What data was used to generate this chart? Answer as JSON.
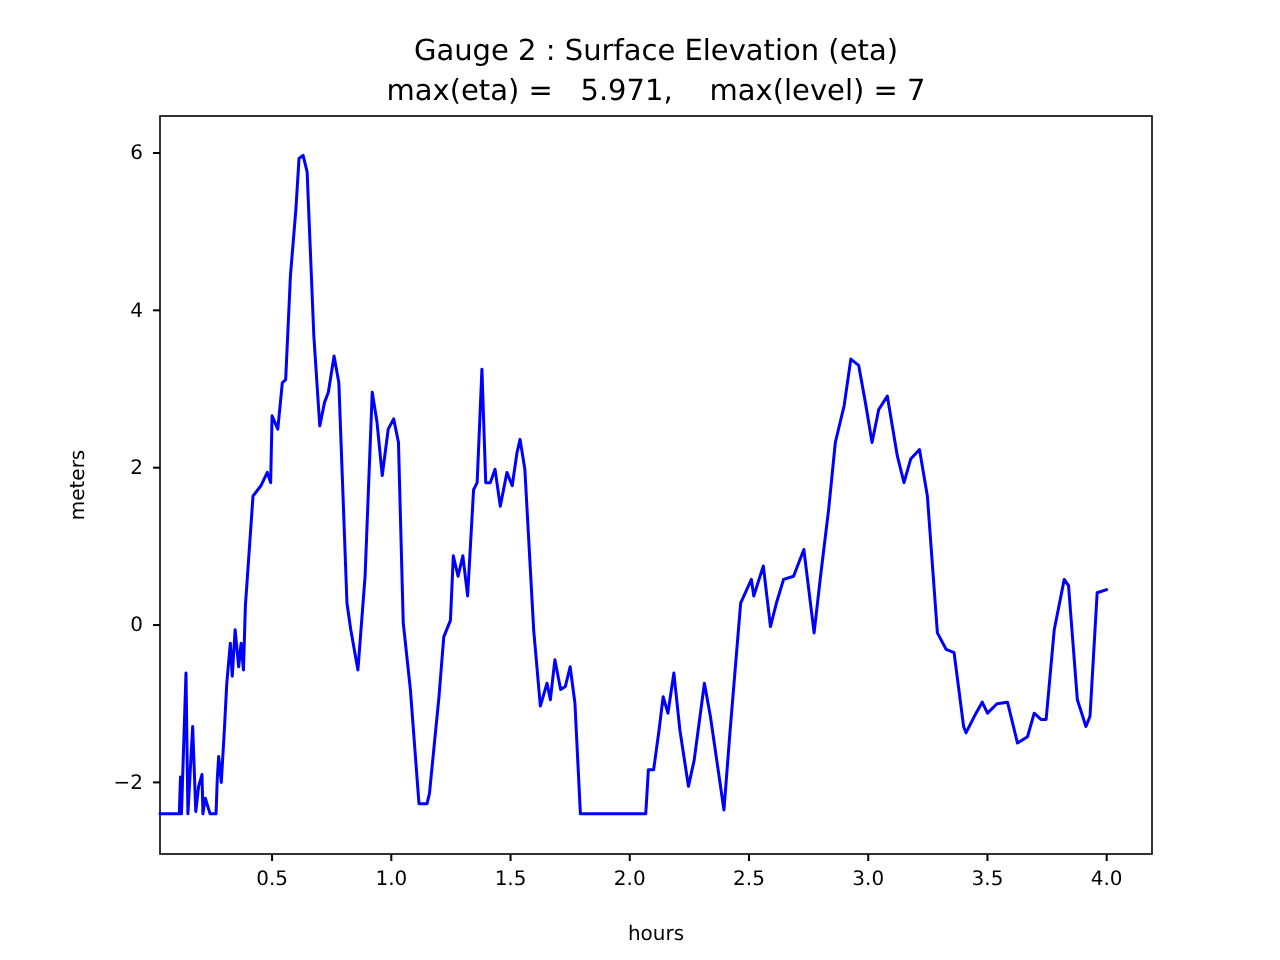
{
  "chart_data": {
    "type": "line",
    "title": "Gauge 2 : Surface Elevation (eta)",
    "subtitle": "max(eta) =   5.971,    max(level) = 7",
    "xlabel": "hours",
    "ylabel": "meters",
    "xlim": [
      0.03,
      4.19
    ],
    "ylim": [
      -2.91,
      6.47
    ],
    "xticks": [
      0.5,
      {
        "value": 1,
        "label": "1.0"
      },
      1.5,
      {
        "value": 2,
        "label": "2.0"
      },
      2.5,
      {
        "value": 3,
        "label": "3.0"
      },
      3.5,
      {
        "value": 4,
        "label": "4.0"
      }
    ],
    "yticks": [
      {
        "value": -2,
        "label": "−2"
      },
      0,
      2,
      4,
      6
    ],
    "line_style": "solid",
    "series": [
      {
        "color": "#0000ff",
        "x": [
          0.03,
          0.111,
          0.116,
          0.12,
          0.139,
          0.147,
          0.167,
          0.18,
          0.192,
          0.206,
          0.21,
          0.22,
          0.24,
          0.265,
          0.27,
          0.276,
          0.287,
          0.3,
          0.31,
          0.325,
          0.333,
          0.345,
          0.36,
          0.37,
          0.38,
          0.388,
          0.42,
          0.453,
          0.48,
          0.494,
          0.5,
          0.524,
          0.543,
          0.557,
          0.577,
          0.6,
          0.613,
          0.63,
          0.647,
          0.675,
          0.7,
          0.72,
          0.736,
          0.76,
          0.78,
          0.814,
          0.83,
          0.86,
          0.89,
          0.92,
          0.94,
          0.962,
          0.987,
          1.01,
          1.03,
          1.05,
          1.08,
          1.116,
          1.15,
          1.16,
          1.2,
          1.22,
          1.248,
          1.26,
          1.28,
          1.3,
          1.32,
          1.345,
          1.36,
          1.38,
          1.396,
          1.415,
          1.435,
          1.457,
          1.485,
          1.507,
          1.527,
          1.54,
          1.56,
          1.597,
          1.625,
          1.653,
          1.667,
          1.686,
          1.71,
          1.73,
          1.75,
          1.77,
          1.793,
          2.067,
          2.078,
          2.1,
          2.123,
          2.14,
          2.16,
          2.185,
          2.21,
          2.246,
          2.27,
          2.313,
          2.338,
          2.395,
          2.42,
          2.465,
          2.51,
          2.52,
          2.56,
          2.59,
          2.615,
          2.645,
          2.687,
          2.73,
          2.773,
          2.8,
          2.834,
          2.862,
          2.899,
          2.927,
          2.96,
          2.988,
          3.016,
          3.044,
          3.08,
          3.122,
          3.15,
          3.178,
          3.215,
          3.248,
          3.29,
          3.327,
          3.36,
          3.4,
          3.41,
          3.445,
          3.478,
          3.5,
          3.54,
          3.584,
          3.626,
          3.668,
          3.696,
          3.724,
          3.746,
          3.78,
          3.822,
          3.84,
          3.877,
          3.913,
          3.93,
          3.96,
          4.0
        ],
        "values": [
          -2.4,
          -2.4,
          -1.93,
          -2.4,
          -0.61,
          -2.4,
          -1.29,
          -2.37,
          -2.05,
          -1.9,
          -2.4,
          -2.2,
          -2.4,
          -2.4,
          -1.97,
          -1.67,
          -2.0,
          -1.33,
          -0.74,
          -0.23,
          -0.65,
          -0.06,
          -0.53,
          -0.23,
          -0.57,
          0.24,
          1.64,
          1.77,
          1.94,
          1.81,
          2.66,
          2.49,
          3.08,
          3.12,
          4.44,
          5.29,
          5.93,
          5.97,
          5.76,
          3.68,
          2.53,
          2.83,
          2.96,
          3.42,
          3.08,
          0.28,
          -0.06,
          -0.57,
          0.62,
          2.96,
          2.58,
          1.9,
          2.49,
          2.62,
          2.32,
          0.03,
          -0.82,
          -2.27,
          -2.27,
          -2.14,
          -0.91,
          -0.15,
          0.06,
          0.88,
          0.62,
          0.88,
          0.37,
          1.72,
          1.81,
          3.25,
          1.81,
          1.81,
          1.98,
          1.51,
          1.94,
          1.77,
          2.19,
          2.36,
          1.98,
          -0.06,
          -1.03,
          -0.74,
          -0.95,
          -0.44,
          -0.82,
          -0.78,
          -0.53,
          -0.99,
          -2.4,
          -2.4,
          -1.84,
          -1.84,
          -1.33,
          -0.91,
          -1.12,
          -0.61,
          -1.33,
          -2.05,
          -1.72,
          -0.74,
          -1.16,
          -2.35,
          -1.37,
          0.28,
          0.58,
          0.37,
          0.75,
          -0.02,
          0.28,
          0.58,
          0.62,
          0.96,
          -0.1,
          0.62,
          1.47,
          2.32,
          2.79,
          3.38,
          3.3,
          2.83,
          2.32,
          2.74,
          2.91,
          2.15,
          1.81,
          2.11,
          2.23,
          1.64,
          -0.1,
          -0.31,
          -0.35,
          -1.29,
          -1.37,
          -1.16,
          -0.98,
          -1.12,
          -1.0,
          -0.98,
          -1.5,
          -1.42,
          -1.12,
          -1.2,
          -1.2,
          -0.06,
          0.58,
          0.5,
          -0.95,
          -1.29,
          -1.16,
          0.41,
          0.45
        ]
      }
    ]
  }
}
